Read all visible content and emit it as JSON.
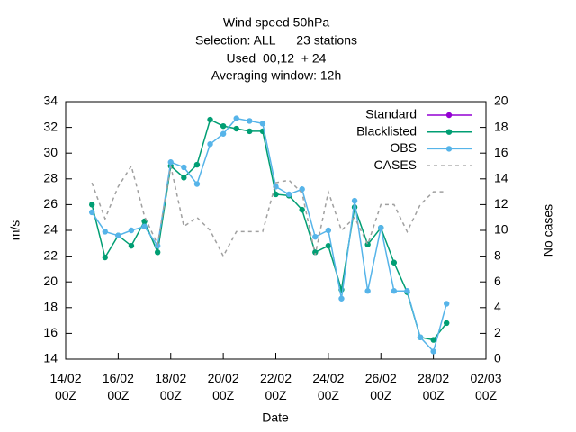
{
  "chart_data": {
    "type": "line",
    "title": [
      "Wind speed 50hPa",
      "Selection: ALL      23 stations",
      "Used  00,12  + 24",
      "Averaging window: 12h"
    ],
    "xlabel": "Date",
    "ylabel": "m/s",
    "y2label": "No cases",
    "x": [
      "15/02 00Z",
      "15/02 12Z",
      "16/02 00Z",
      "16/02 12Z",
      "17/02 00Z",
      "17/02 12Z",
      "18/02 00Z",
      "18/02 12Z",
      "19/02 00Z",
      "19/02 12Z",
      "20/02 00Z",
      "20/02 12Z",
      "21/02 00Z",
      "21/02 12Z",
      "22/02 00Z",
      "22/02 12Z",
      "23/02 00Z",
      "23/02 12Z",
      "24/02 00Z",
      "24/02 12Z",
      "25/02 00Z",
      "25/02 12Z",
      "26/02 00Z",
      "26/02 12Z",
      "27/02 00Z",
      "27/02 12Z",
      "28/02 00Z",
      "28/02 12Z"
    ],
    "xlim": [
      "14/02 00Z",
      "02/03 00Z"
    ],
    "xticks": [
      {
        "value": "14/02 00Z",
        "label": "14/02\n00Z"
      },
      {
        "value": "16/02 00Z",
        "label": "16/02\n00Z"
      },
      {
        "value": "18/02 00Z",
        "label": "18/02\n00Z"
      },
      {
        "value": "20/02 00Z",
        "label": "20/02\n00Z"
      },
      {
        "value": "22/02 00Z",
        "label": "22/02\n00Z"
      },
      {
        "value": "24/02 00Z",
        "label": "24/02\n00Z"
      },
      {
        "value": "26/02 00Z",
        "label": "26/02\n00Z"
      },
      {
        "value": "28/02 00Z",
        "label": "28/02\n00Z"
      },
      {
        "value": "02/03 00Z",
        "label": "02/03\n00Z"
      }
    ],
    "ylim": [
      14,
      34
    ],
    "yticks": [
      14,
      16,
      18,
      20,
      22,
      24,
      26,
      28,
      30,
      32,
      34
    ],
    "y2lim": [
      0,
      20
    ],
    "y2ticks": [
      0,
      2,
      4,
      6,
      8,
      10,
      12,
      14,
      16,
      18,
      20
    ],
    "legend": "top-right",
    "series": [
      {
        "name": "Standard",
        "color": "#9400d3",
        "values": [
          null,
          null,
          null,
          null,
          null,
          null,
          null,
          null,
          null,
          null,
          null,
          null,
          null,
          null,
          null,
          null,
          null,
          null,
          null,
          null,
          null,
          null,
          null,
          null,
          null,
          null,
          null,
          null
        ]
      },
      {
        "name": "Blacklisted",
        "color": "#009e73",
        "values": [
          26.0,
          21.9,
          23.6,
          22.8,
          24.7,
          22.3,
          29.0,
          28.1,
          29.1,
          32.6,
          32.1,
          31.9,
          31.7,
          31.7,
          26.8,
          26.7,
          25.6,
          22.3,
          22.8,
          19.4,
          25.8,
          22.9,
          24.2,
          21.5,
          19.2,
          15.7,
          15.5,
          16.8
        ]
      },
      {
        "name": "OBS",
        "color": "#56b4e9",
        "values": [
          25.4,
          23.9,
          23.6,
          24.0,
          24.3,
          22.8,
          29.3,
          28.9,
          27.6,
          30.7,
          31.5,
          32.7,
          32.5,
          32.3,
          27.4,
          26.8,
          27.2,
          23.5,
          24.0,
          18.7,
          26.3,
          19.3,
          24.2,
          19.3,
          19.3,
          15.7,
          14.6,
          18.3
        ]
      },
      {
        "name": "CASES",
        "color": "#a0a0a0",
        "axis": "y2",
        "dashed": true,
        "values": [
          13.7,
          10.9,
          13.4,
          15.0,
          11.1,
          8.9,
          15.0,
          10.3,
          11.0,
          10.0,
          8.0,
          9.9,
          9.9,
          9.9,
          13.7,
          13.9,
          12.9,
          8.1,
          13.0,
          10.0,
          11.0,
          8.9,
          12.0,
          12.0,
          9.9,
          12.0,
          13.0,
          13.0
        ]
      }
    ]
  }
}
